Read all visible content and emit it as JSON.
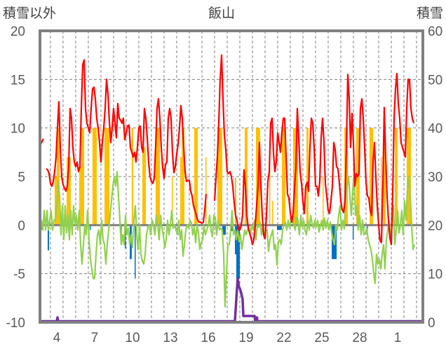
{
  "chart_data": {
    "type": "line",
    "title": "飯山",
    "ylabel_left": "積雪以外",
    "ylabel_right": "積雪",
    "ylim_left": [
      -10,
      20
    ],
    "ylim_right": [
      0,
      60
    ],
    "xlim_days": [
      2.67,
      33.0
    ],
    "grid": true,
    "left_ticks": [
      {
        "value": 20,
        "label": "20"
      },
      {
        "value": 15,
        "label": "15"
      },
      {
        "value": 10,
        "label": "10"
      },
      {
        "value": 5,
        "label": "5"
      },
      {
        "value": 0,
        "label": "0"
      },
      {
        "value": -5,
        "label": "-5"
      },
      {
        "value": -10,
        "label": "-10"
      }
    ],
    "right_ticks": [
      {
        "value": 60,
        "label": "60"
      },
      {
        "value": 50,
        "label": "50"
      },
      {
        "value": 40,
        "label": "40"
      },
      {
        "value": 30,
        "label": "30"
      },
      {
        "value": 20,
        "label": "20"
      },
      {
        "value": 10,
        "label": "10"
      },
      {
        "value": 0,
        "label": "0"
      }
    ],
    "x_ticks": [
      {
        "day": 4,
        "label": "4"
      },
      {
        "day": 7,
        "label": "7"
      },
      {
        "day": 10,
        "label": "10"
      },
      {
        "day": 13,
        "label": "13"
      },
      {
        "day": 16,
        "label": "16"
      },
      {
        "day": 19,
        "label": "19"
      },
      {
        "day": 22,
        "label": "22"
      },
      {
        "day": 25,
        "label": "25"
      },
      {
        "day": 28,
        "label": "28"
      },
      {
        "day": 31,
        "label": "1"
      }
    ],
    "colors": {
      "red": "#FF0000",
      "orange": "#FFC000",
      "green": "#92D050",
      "blue": "#0070C0",
      "purple": "#7030A0",
      "frame": "#808080"
    },
    "red_segments": [
      {
        "start": 2.72,
        "step": 0.222,
        "values": [
          8.3,
          8.9
        ]
      },
      {
        "start": 3.1667,
        "step": 0.1111,
        "values": [
          5.8,
          5.7,
          5.3,
          4.3,
          4,
          4.5,
          5.5,
          7,
          10,
          12.7,
          8,
          5,
          4.2,
          3.8,
          3.5,
          4,
          6,
          12,
          11,
          8,
          6.5,
          6,
          6.5,
          5.5,
          6,
          12,
          16.5,
          17,
          12,
          10.5,
          10,
          9.5,
          12,
          14,
          14.2,
          13,
          11,
          10,
          8.5,
          6.5,
          8.5,
          10,
          12,
          15,
          13.5,
          10.7,
          8.5,
          10,
          12,
          10.5,
          9,
          12.5,
          11,
          10.8,
          10.5,
          11,
          8.8,
          9.5,
          10.2,
          10.3,
          8,
          7.5,
          7,
          7.5,
          6.5,
          8,
          10,
          10.2,
          8,
          7.5,
          12,
          11,
          9,
          6.5,
          5,
          4.5,
          4.3,
          4.8,
          8,
          12,
          13,
          11,
          8,
          6,
          4.8,
          6.2,
          6.5,
          11,
          12,
          11,
          7.5,
          5.4,
          6,
          7.3,
          8.3,
          10,
          12.3,
          11,
          8,
          5.5,
          4.5,
          4.6,
          4.6,
          3.5,
          3,
          2,
          1.5,
          1,
          0.5,
          0.3,
          0.3,
          0.2,
          0.3,
          1.5,
          3.2
        ]
      },
      {
        "start": 16.5,
        "step": 0.1111,
        "values": [
          2.5,
          4.8,
          7,
          10.5,
          15,
          17.5,
          13,
          9.3,
          7.8,
          5.5,
          5.3,
          5.5,
          5,
          4,
          2.3,
          1,
          0.5,
          -0.5,
          -0.5,
          0,
          1,
          5.7,
          4,
          1,
          -0.3,
          -0.8,
          -1.3,
          -2,
          -1.5,
          0,
          2,
          4,
          8.5,
          4,
          1,
          -1,
          -1.4,
          1,
          4.5,
          5.5,
          10.5,
          11,
          7.5,
          5.5,
          6.5,
          9.5,
          8.5,
          7.5,
          9.5,
          11,
          11,
          7,
          3.2,
          2.8,
          1.3,
          0.3,
          1.2,
          3.8,
          6,
          12,
          9,
          5.5,
          4.3,
          2.4,
          1.2,
          4,
          4.4,
          3.5,
          8,
          11,
          10.5,
          8,
          4,
          4,
          3,
          4.5,
          9,
          11,
          8.6,
          4.3,
          3,
          1.5,
          1.2,
          2.5,
          4,
          8.5,
          7.8,
          6,
          5.8,
          4.3,
          2.5,
          1.6,
          1.3,
          2.5,
          8,
          15.5,
          13,
          8,
          11.5,
          8.5,
          4,
          5.3,
          5,
          5.3,
          12,
          13,
          11,
          8,
          4.4,
          3,
          2.8,
          1.5,
          1,
          6.5,
          8.5,
          5,
          2,
          0,
          -1.6,
          -1.8,
          4,
          12.1,
          7,
          3,
          0.5,
          -1.3,
          -2,
          3,
          11,
          14,
          15.6,
          12.5,
          11,
          8.5,
          8,
          7.5,
          7,
          12,
          15,
          15,
          12,
          11,
          10.5
        ]
      }
    ],
    "green_series": {
      "start": 2.556,
      "step": 0.1111,
      "values": [
        1,
        -1,
        0.5,
        -0.5,
        1.5,
        -0.5,
        1.5,
        -0.5,
        0.5,
        1.5,
        -0.5,
        0.5,
        0.5,
        2,
        4.5,
        3,
        -1,
        2,
        -1.5,
        2,
        -0.8,
        1,
        -1.5,
        1.5,
        -1,
        2,
        0,
        1,
        -0.5,
        1.5,
        -2,
        -4,
        -2,
        0,
        -1,
        1.5,
        -1.5,
        -3.5,
        -4.5,
        -5.5,
        -5.5,
        -3,
        -1,
        -0.5,
        -2,
        0.5,
        -1.5,
        -2,
        -4,
        -2,
        -0.5,
        1,
        2.5,
        4,
        5,
        4,
        5.5,
        3,
        0.5,
        -2,
        -1,
        -2,
        1,
        -1,
        -0.3,
        -2,
        -1,
        -2.3,
        0.5,
        2,
        -1,
        -2.5,
        0,
        -3,
        -3.7,
        -4,
        -3,
        -1,
        -0.2,
        0,
        -1,
        0.5,
        0,
        -1,
        1,
        0,
        -1.5,
        1,
        -0.3,
        -1,
        -2.3,
        -1.5,
        0.5,
        -1,
        0,
        1.5,
        -0.3,
        0,
        -0.5,
        -1,
        0.5,
        -1.5,
        -0.5,
        -3.2,
        -2,
        -0.5,
        0,
        -0.3,
        0.5,
        0.2,
        -1,
        -0.2,
        -1.8,
        0,
        -0.8,
        -2.5,
        -1.8,
        -1.5,
        0,
        -1,
        -0.5,
        0,
        1,
        -0.5,
        -1.2,
        1,
        0.8,
        -1,
        0.5,
        -0.5,
        -0.3,
        -0.5,
        -3,
        -8.4,
        -5,
        -2,
        -2,
        -0.5,
        1.5,
        -1,
        -0.5,
        -1.5,
        -0.5,
        -1.7,
        -1,
        -2.5,
        -1.5,
        -0.5,
        -1,
        -0.5,
        -0.2,
        -1,
        0,
        -0.5,
        0.5,
        -1.5,
        0,
        -0.2,
        0.3,
        -1,
        0,
        -1.3,
        -0.5,
        -0.5,
        -2.7,
        -1.5,
        -1,
        -0.5,
        -2.5,
        -2,
        -4.1,
        -1.7,
        -1.5,
        -2,
        -0.5,
        0,
        0.3,
        -0.5,
        0.5,
        -0.3,
        0.5,
        0.5,
        0,
        -0.5,
        0.8,
        0.5,
        -1,
        1,
        -0.2,
        0.5,
        -0.5,
        -1,
        0.5,
        -0.5,
        1,
        0.2,
        -0.3,
        0.5,
        -0.2,
        0.5,
        -0.7,
        0,
        0.5,
        -0.5,
        0.7,
        -0.3,
        0.5,
        -0.5,
        0.3,
        -0.8,
        -1.5,
        -2,
        0,
        -0.5,
        1,
        2,
        -0.5,
        0.5,
        -0.4,
        2.5,
        4,
        5,
        3,
        1,
        3.5,
        5.5,
        1,
        2,
        -0.5,
        1,
        -1,
        0.5,
        -1,
        -0.8,
        -0.3,
        -1.5,
        -2,
        -2.5,
        -3.5,
        -5,
        -6,
        -3,
        -4,
        -3.5,
        -4.5,
        -3,
        -2,
        -4.5,
        -1.5,
        -0.5,
        0.5,
        -1.5,
        0,
        2,
        -2,
        -0.5,
        1.5,
        -0.8,
        0,
        1.5,
        -1,
        2.5,
        0.5,
        3.5,
        5,
        3,
        0,
        -2.5,
        -2
      ]
    },
    "orange_bars": [
      [
        3.83,
        4.0,
        5
      ],
      [
        4.0,
        4.22,
        10
      ],
      [
        4.78,
        5.11,
        7
      ],
      [
        5.78,
        5.94,
        6
      ],
      [
        5.94,
        6.17,
        10
      ],
      [
        6.83,
        7.17,
        10
      ],
      [
        7.78,
        8.17,
        10
      ],
      [
        9.94,
        10.06,
        10
      ],
      [
        10.78,
        11.06,
        8
      ],
      [
        11.83,
        12.17,
        10
      ],
      [
        13.11,
        13.17,
        5
      ],
      [
        13.78,
        13.9,
        7
      ],
      [
        13.9,
        14.11,
        10
      ],
      [
        14.89,
        15.17,
        10
      ],
      [
        15.78,
        15.83,
        7
      ],
      [
        16.72,
        17.11,
        10
      ],
      [
        18.11,
        18.22,
        4.9
      ],
      [
        18.89,
        19.11,
        10
      ],
      [
        19.78,
        20.11,
        10
      ],
      [
        20.83,
        20.89,
        6
      ],
      [
        21.06,
        21.11,
        2.5
      ],
      [
        21.83,
        22.11,
        10
      ],
      [
        22.72,
        23.11,
        10
      ],
      [
        23.78,
        23.94,
        10
      ],
      [
        25.06,
        25.11,
        5
      ],
      [
        26.78,
        27.06,
        10
      ],
      [
        27.72,
        28.0,
        10
      ],
      [
        28.78,
        29.06,
        10
      ],
      [
        29.67,
        29.72,
        7
      ],
      [
        29.89,
        30.06,
        10
      ],
      [
        30.78,
        31.0,
        10
      ],
      [
        31.72,
        32.06,
        10
      ]
    ],
    "blue_bars": [
      [
        2.72,
        2.78,
        -0.5
      ],
      [
        3.28,
        3.39,
        -2.6
      ],
      [
        6.61,
        6.67,
        -0.5
      ],
      [
        9.06,
        9.11,
        -1.6
      ],
      [
        9.39,
        9.44,
        -2.4
      ],
      [
        9.78,
        9.94,
        -3.5
      ],
      [
        10.17,
        10.22,
        -5.5
      ],
      [
        13.56,
        13.61,
        -1
      ],
      [
        17.11,
        17.39,
        -1
      ],
      [
        17.83,
        18.0,
        -0.6
      ],
      [
        18.11,
        18.22,
        -3
      ],
      [
        18.22,
        18.5,
        -5.5
      ],
      [
        21.44,
        21.83,
        -0.5
      ],
      [
        25.78,
        26.17,
        -3.5
      ],
      [
        27.44,
        27.5,
        -1.5
      ],
      [
        28.28,
        28.33,
        -0.5
      ],
      [
        28.56,
        28.61,
        -0.5
      ]
    ],
    "snow_depth": [
      [
        2.67,
        0
      ],
      [
        4.0,
        0
      ],
      [
        4.06,
        1
      ],
      [
        4.11,
        0
      ],
      [
        18.11,
        0
      ],
      [
        18.33,
        9
      ],
      [
        18.44,
        7.2
      ],
      [
        18.5,
        7
      ],
      [
        18.61,
        6
      ],
      [
        18.72,
        4.8
      ],
      [
        18.78,
        1.3
      ],
      [
        19.67,
        1.3
      ],
      [
        19.72,
        0
      ],
      [
        19.83,
        0
      ],
      [
        19.86,
        1
      ],
      [
        19.89,
        0
      ],
      [
        33.0,
        0
      ]
    ]
  }
}
